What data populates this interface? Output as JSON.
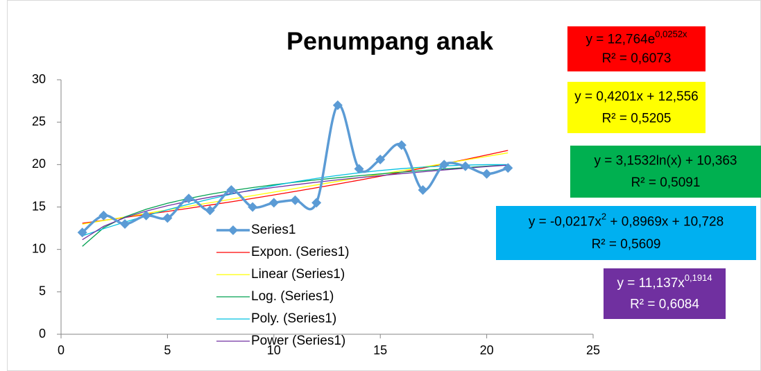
{
  "chart_data": {
    "type": "line",
    "title": "Penumpang anak",
    "x": [
      1,
      2,
      3,
      4,
      5,
      6,
      7,
      8,
      9,
      10,
      11,
      12,
      13,
      14,
      15,
      16,
      17,
      18,
      19,
      20,
      21
    ],
    "xlim": [
      0,
      25
    ],
    "xticks": [
      0,
      5,
      10,
      15,
      20,
      25
    ],
    "ylim": [
      0,
      30
    ],
    "yticks": [
      0,
      5,
      10,
      15,
      20,
      25,
      30
    ],
    "series": [
      {
        "name": "Series1",
        "color": "#5b9bd5",
        "smooth": true,
        "marker": "diamond",
        "values": [
          12,
          14,
          13,
          14,
          13.7,
          16,
          14.6,
          17,
          15,
          15.5,
          15.8,
          15.5,
          27,
          19.5,
          20.6,
          22.3,
          17,
          20,
          19.8,
          18.9,
          19.6
        ]
      },
      {
        "name": "Expon. (Series1)",
        "color": "#ff0000",
        "box_color": "#ff0000",
        "label_text_color": "#000000",
        "equation": [
          {
            "text": "y = 12,764e"
          },
          {
            "text": "0,0252x",
            "sup": true
          }
        ],
        "r2": "R² = 0,6073",
        "values": [
          13.09,
          13.42,
          13.77,
          14.12,
          14.48,
          14.85,
          15.23,
          15.61,
          16.01,
          16.42,
          16.84,
          17.27,
          17.71,
          18.16,
          18.63,
          19.1,
          19.59,
          20.09,
          20.6,
          21.13,
          21.67
        ]
      },
      {
        "name": "Linear (Series1)",
        "color": "#ffff00",
        "box_color": "#ffff00",
        "label_text_color": "#000000",
        "equation": [
          {
            "text": "y = 0,4201x + 12,556"
          }
        ],
        "r2": "R² = 0,5205",
        "values": [
          12.98,
          13.4,
          13.82,
          14.24,
          14.66,
          15.08,
          15.5,
          15.92,
          16.34,
          16.76,
          17.18,
          17.6,
          18.02,
          18.44,
          18.86,
          19.28,
          19.7,
          20.12,
          20.54,
          20.96,
          21.38
        ]
      },
      {
        "name": "Log. (Series1)",
        "color": "#00a050",
        "box_color": "#00b050",
        "label_text_color": "#000000",
        "equation": [
          {
            "text": "y = 3,1532ln(x) + 10,363"
          }
        ],
        "r2": "R² = 0,5091",
        "values": [
          10.36,
          12.55,
          13.83,
          14.73,
          15.44,
          16.01,
          16.5,
          16.92,
          17.29,
          17.62,
          17.92,
          18.2,
          18.45,
          18.69,
          18.9,
          19.11,
          19.3,
          19.48,
          19.65,
          19.81,
          19.96
        ]
      },
      {
        "name": "Poly. (Series1)",
        "color": "#00c0e0",
        "box_color": "#00b0f0",
        "label_text_color": "#000000",
        "equation": [
          {
            "text": "y = -0,0217x"
          },
          {
            "text": "2",
            "sup": true
          },
          {
            "text": " + 0,8969x + 10,728"
          }
        ],
        "r2": "R² = 0,5609",
        "values": [
          11.6,
          12.44,
          13.22,
          13.97,
          14.67,
          15.33,
          15.94,
          16.51,
          17.04,
          17.53,
          17.97,
          18.37,
          18.72,
          19.03,
          19.3,
          19.52,
          19.7,
          19.84,
          19.94,
          19.99,
          19.99
        ]
      },
      {
        "name": "Power (Series1)",
        "color": "#7030a0",
        "box_color": "#7030a0",
        "label_text_color": "#ffffff",
        "equation": [
          {
            "text": "y = 11,137x"
          },
          {
            "text": "0,1914",
            "sup": true
          }
        ],
        "r2": "R² = 0,6084",
        "values": [
          11.14,
          12.72,
          13.74,
          14.52,
          15.15,
          15.69,
          16.16,
          16.58,
          16.96,
          17.31,
          17.62,
          17.92,
          18.2,
          18.46,
          18.7,
          18.93,
          19.15,
          19.37,
          19.57,
          19.76,
          19.94
        ]
      }
    ]
  }
}
